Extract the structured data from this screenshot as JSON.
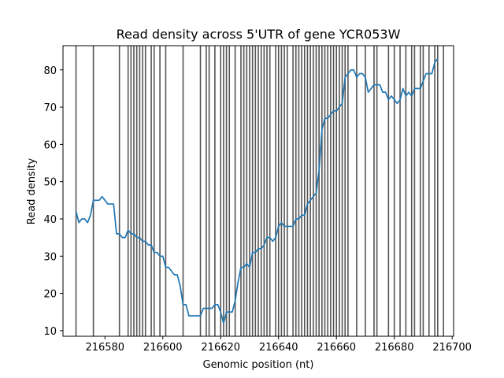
{
  "chart_data": {
    "type": "line",
    "title": "Read density across 5'UTR of gene YCR053W",
    "xlabel": "Genomic position (nt)",
    "ylabel": "Read density",
    "xlim": [
      216565.5,
      216700.5
    ],
    "ylim": [
      8.5,
      86.5
    ],
    "xticks": [
      216580,
      216600,
      216620,
      216640,
      216660,
      216680,
      216700
    ],
    "yticks": [
      10,
      20,
      30,
      40,
      50,
      60,
      70,
      80
    ],
    "grid": false,
    "legend": "none",
    "colors": {
      "line": "#1f77b4",
      "vlines": "#555555"
    },
    "series": [
      {
        "x": [
          216570,
          216571,
          216572,
          216573,
          216574,
          216575,
          216576,
          216577,
          216578,
          216579,
          216580,
          216581,
          216582,
          216583,
          216584,
          216585,
          216586,
          216587,
          216588,
          216589,
          216590,
          216591,
          216592,
          216593,
          216594,
          216595,
          216596,
          216597,
          216598,
          216599,
          216600,
          216601,
          216602,
          216603,
          216604,
          216605,
          216606,
          216607,
          216608,
          216609,
          216610,
          216611,
          216612,
          216613,
          216614,
          216615,
          216616,
          216617,
          216618,
          216619,
          216620,
          216621,
          216622,
          216623,
          216624,
          216625,
          216626,
          216627,
          216628,
          216629,
          216630,
          216631,
          216632,
          216633,
          216634,
          216635,
          216636,
          216637,
          216638,
          216639,
          216640,
          216641,
          216642,
          216643,
          216644,
          216645,
          216646,
          216647,
          216648,
          216649,
          216650,
          216651,
          216652,
          216653,
          216654,
          216655,
          216656,
          216657,
          216658,
          216659,
          216660,
          216661,
          216662,
          216663,
          216664,
          216665,
          216666,
          216667,
          216668,
          216669,
          216670,
          216671,
          216672,
          216673,
          216674,
          216675,
          216676,
          216677,
          216678,
          216679,
          216680,
          216681,
          216682,
          216683,
          216684,
          216685,
          216686,
          216687,
          216688,
          216689,
          216690,
          216691,
          216692,
          216693,
          216694,
          216695
        ],
        "values": [
          42,
          39,
          40,
          40,
          39,
          41,
          45,
          45,
          45,
          46,
          45,
          44,
          44,
          44,
          36,
          36,
          35,
          35,
          37,
          36,
          36,
          35,
          35,
          34,
          34,
          33,
          33,
          31,
          31,
          30,
          30,
          27,
          27,
          26,
          25,
          25,
          22,
          17,
          17,
          14,
          14,
          14,
          14,
          14,
          16,
          16,
          16,
          16,
          17,
          17,
          15,
          12,
          15,
          15,
          15,
          18,
          23,
          27,
          27,
          28,
          27,
          31,
          31,
          32,
          32,
          33,
          35,
          35,
          34,
          35,
          38,
          39,
          38,
          38,
          38,
          38,
          40,
          40,
          41,
          41,
          44,
          45,
          46,
          47,
          53,
          64,
          67,
          67,
          68,
          69,
          69,
          70,
          71,
          78,
          79,
          80,
          80,
          78,
          79,
          79,
          78,
          74,
          75,
          76,
          76,
          76,
          74,
          74,
          72,
          73,
          72,
          71,
          72,
          75,
          73,
          74,
          73,
          75,
          75,
          75,
          77,
          79,
          79,
          79,
          82,
          83
        ]
      }
    ],
    "vlines": [
      216570,
      216576,
      216585,
      216588,
      216589,
      216590,
      216591,
      216592,
      216593,
      216594,
      216596,
      216597,
      216599,
      216601,
      216607,
      216613,
      216615,
      216616,
      216618,
      216620,
      216621,
      216622,
      216623,
      216625,
      216627,
      216628,
      216629,
      216630,
      216631,
      216632,
      216633,
      216634,
      216635,
      216636,
      216637,
      216639,
      216640,
      216641,
      216642,
      216643,
      216645,
      216646,
      216647,
      216648,
      216649,
      216650,
      216651,
      216652,
      216653,
      216654,
      216655,
      216656,
      216657,
      216658,
      216659,
      216660,
      216661,
      216662,
      216663,
      216664,
      216667,
      216670,
      216673,
      216674,
      216678,
      216680,
      216682,
      216684,
      216686,
      216687,
      216689,
      216690,
      216692,
      216694,
      216695,
      216697
    ]
  }
}
